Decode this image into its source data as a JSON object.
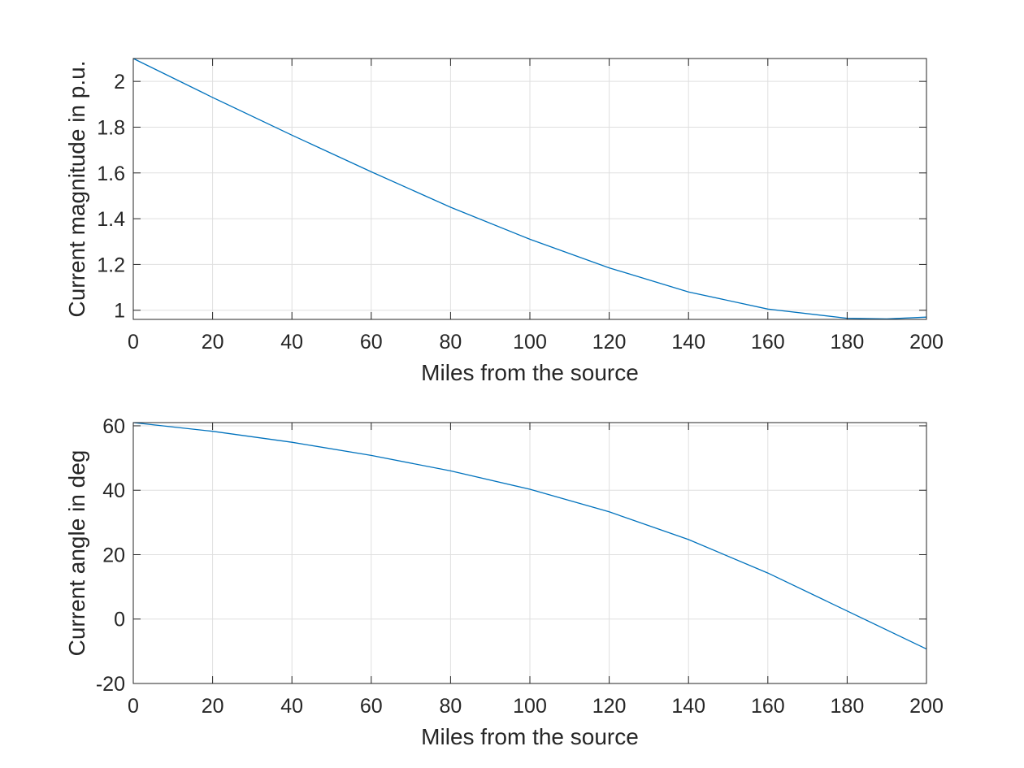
{
  "chart_data": [
    {
      "type": "line",
      "xlabel": "Miles from the source",
      "ylabel": "Current magnitude in p.u.",
      "xlim": [
        0,
        200
      ],
      "ylim": [
        0.96,
        2.1
      ],
      "xticks": [
        "0",
        "20",
        "40",
        "60",
        "80",
        "100",
        "120",
        "140",
        "160",
        "180",
        "200"
      ],
      "yticks": [
        "1",
        "1.2",
        "1.4",
        "1.6",
        "1.8",
        "2"
      ],
      "grid": true,
      "series": [
        {
          "color": "#0072bd",
          "x": [
            0,
            20,
            40,
            60,
            80,
            100,
            120,
            140,
            160,
            180,
            190,
            200
          ],
          "y": [
            2.1,
            1.93,
            1.765,
            1.605,
            1.45,
            1.31,
            1.185,
            1.08,
            1.005,
            0.965,
            0.962,
            0.97
          ]
        }
      ]
    },
    {
      "type": "line",
      "xlabel": "Miles from the source",
      "ylabel": "Current angle in deg",
      "xlim": [
        0,
        200
      ],
      "ylim": [
        -20,
        61
      ],
      "xticks": [
        "0",
        "20",
        "40",
        "60",
        "80",
        "100",
        "120",
        "140",
        "160",
        "180",
        "200"
      ],
      "yticks": [
        "-20",
        "0",
        "20",
        "40",
        "60"
      ],
      "grid": true,
      "series": [
        {
          "color": "#0072bd",
          "x": [
            0,
            20,
            40,
            60,
            80,
            100,
            120,
            140,
            160,
            180,
            200
          ],
          "y": [
            61,
            58.3,
            54.9,
            50.8,
            46,
            40.3,
            33.3,
            24.7,
            14.3,
            2.5,
            -9.3
          ]
        }
      ]
    }
  ]
}
